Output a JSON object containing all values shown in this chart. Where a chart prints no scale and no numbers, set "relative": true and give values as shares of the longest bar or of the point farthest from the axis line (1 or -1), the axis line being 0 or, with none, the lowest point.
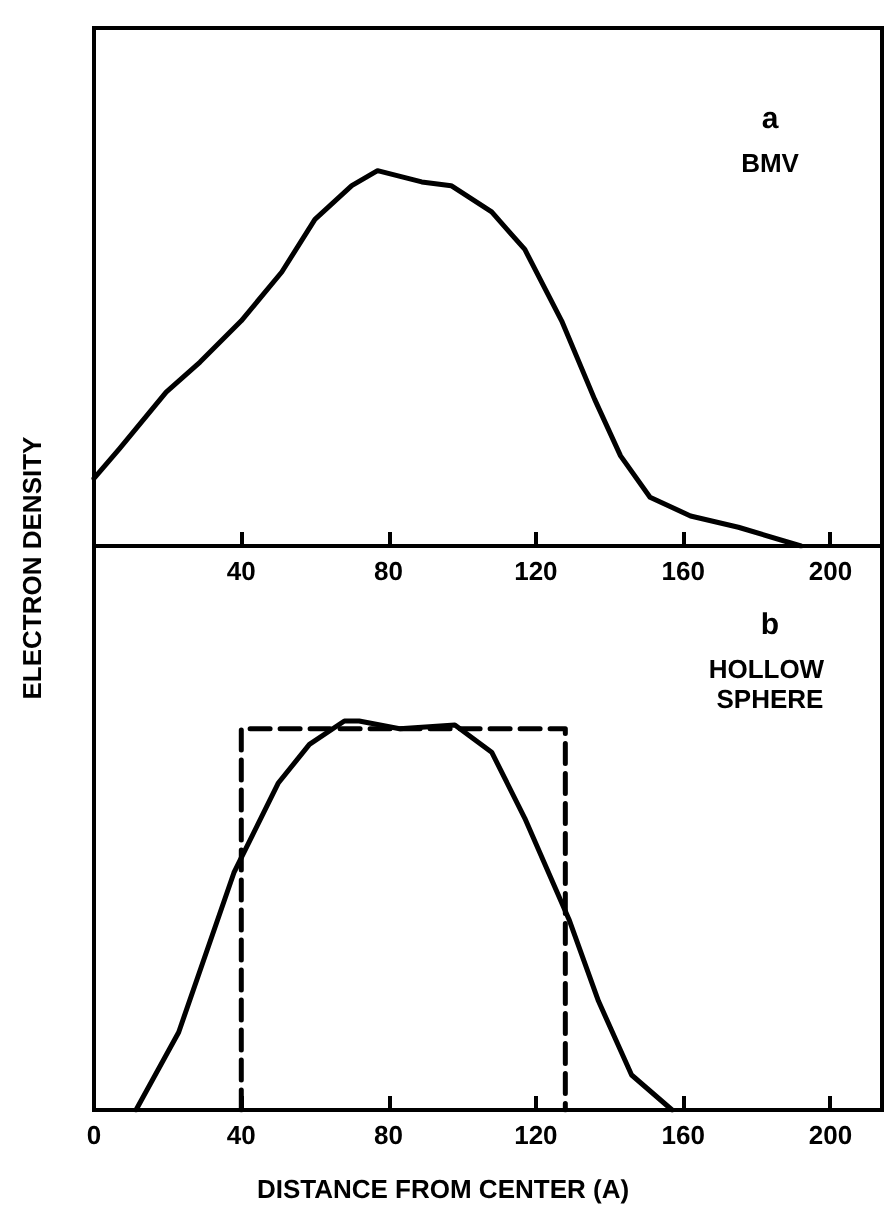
{
  "chart_data": [
    {
      "type": "line",
      "relative": true,
      "ylabel": "ELECTRON DENSITY",
      "xlim": [
        0,
        214
      ],
      "xticks": [
        40,
        80,
        120,
        160,
        200
      ],
      "tick_labels": "x",
      "marker": "none",
      "annotations": [
        "a",
        "BMV"
      ],
      "series": [
        {
          "color": "#000000",
          "x": [
            0,
            7,
            19.6,
            28.8,
            40,
            51,
            60,
            70,
            77,
            89,
            97,
            108,
            117,
            127,
            136,
            143,
            151,
            162,
            175,
            192
          ],
          "values": [
            0.18,
            0.26,
            0.41,
            0.49,
            0.6,
            0.73,
            0.87,
            0.96,
            1.0,
            0.97,
            0.96,
            0.89,
            0.79,
            0.6,
            0.39,
            0.24,
            0.13,
            0.08,
            0.05,
            0
          ]
        }
      ]
    },
    {
      "type": "line",
      "relative": true,
      "xlabel": "DISTANCE FROM CENTER (A)",
      "xlim": [
        0,
        214
      ],
      "xticks": [
        0,
        40,
        80,
        120,
        160,
        200
      ],
      "tick_labels": "x",
      "marker": "none",
      "annotations": [
        "b",
        "HOLLOW SPHERE"
      ],
      "series": [
        {
          "color": "#000000",
          "x": [
            11.4,
            23,
            38,
            50,
            58.5,
            68,
            72,
            83,
            98,
            108,
            117,
            129,
            137,
            146,
            157
          ],
          "values": [
            0,
            0.2,
            0.61,
            0.84,
            0.94,
            1.0,
            1.0,
            0.98,
            0.99,
            0.92,
            0.75,
            0.49,
            0.28,
            0.09,
            0
          ]
        },
        {
          "color": "#000000",
          "line_style": "dashed",
          "x": [
            40,
            40,
            128,
            128
          ],
          "values": [
            0,
            0.98,
            0.98,
            0
          ]
        }
      ]
    }
  ]
}
